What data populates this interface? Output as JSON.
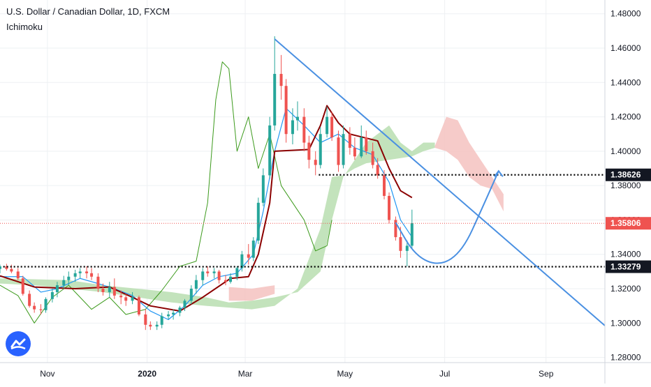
{
  "header": {
    "title": "U.S. Dollar / Canadian Dollar, 1D, FXCM",
    "indicator": "Ichimoku"
  },
  "colors": {
    "background": "#ffffff",
    "grid": "#eef0f3",
    "candle_up": "#26a69a",
    "candle_down": "#ef5350",
    "tenkan": "#2196f3",
    "kijun": "#8b0000",
    "chikou": "#3c9a1c",
    "cloud_bull": "#b8deb0",
    "cloud_bear": "#f5c2c0",
    "annotation": "#4a90e2",
    "price_line": "#ef5350",
    "price_label_bg": "#ef5350",
    "level_label_bg": "#131722"
  },
  "chart_data": {
    "type": "candlestick",
    "title": "U.S. Dollar / Canadian Dollar, 1D, FXCM",
    "indicator": "Ichimoku",
    "y_axis": {
      "range": [
        1.277,
        1.488
      ],
      "ticks": [
        "1.28000",
        "1.30000",
        "1.32000",
        "1.34000",
        "1.36000",
        "1.38000",
        "1.40000",
        "1.42000",
        "1.44000",
        "1.46000",
        "1.48000"
      ]
    },
    "x_axis": {
      "range": [
        "2019-10-03",
        "2020-10-07"
      ],
      "ticks": [
        {
          "label": "Nov",
          "date": "2019-11-01",
          "bold": false
        },
        {
          "label": "2020",
          "date": "2020-01-01",
          "bold": true
        },
        {
          "label": "Mar",
          "date": "2020-03-01",
          "bold": false
        },
        {
          "label": "May",
          "date": "2020-05-01",
          "bold": false
        },
        {
          "label": "Jul",
          "date": "2020-07-01",
          "bold": false
        },
        {
          "label": "Sep",
          "date": "2020-09-01",
          "bold": false
        }
      ]
    },
    "current_price": {
      "value": 1.35806,
      "label": "1.35806"
    },
    "horizontal_levels": [
      {
        "value": 1.38626,
        "label": "1.38626",
        "from": "2020-04-15"
      },
      {
        "value": 1.33279,
        "label": "1.33279",
        "from": "2019-10-05"
      }
    ],
    "trendline": {
      "from": {
        "date": "2020-03-19",
        "value": 1.4653
      },
      "to": {
        "date": "2020-10-07",
        "value": 1.2985
      }
    },
    "projection_path": [
      {
        "date": "2020-06-01",
        "value": 1.3585
      },
      {
        "date": "2020-06-13",
        "value": 1.339
      },
      {
        "date": "2020-06-28",
        "value": 1.333
      },
      {
        "date": "2020-07-12",
        "value": 1.342
      },
      {
        "date": "2020-07-24",
        "value": 1.367
      },
      {
        "date": "2020-08-03",
        "value": 1.3885
      }
    ],
    "projection_arrow_tip": {
      "date": "2020-08-03",
      "value": 1.3885
    },
    "candles_ohlc": [
      [
        "2019-10-03",
        1.3315,
        1.334,
        1.329,
        1.333
      ],
      [
        "2019-10-07",
        1.333,
        1.3345,
        1.3305,
        1.3315
      ],
      [
        "2019-10-10",
        1.3315,
        1.334,
        1.329,
        1.33
      ],
      [
        "2019-10-14",
        1.33,
        1.332,
        1.325,
        1.326
      ],
      [
        "2019-10-17",
        1.326,
        1.3275,
        1.316,
        1.317
      ],
      [
        "2019-10-21",
        1.317,
        1.319,
        1.309,
        1.31
      ],
      [
        "2019-10-24",
        1.31,
        1.312,
        1.306,
        1.308
      ],
      [
        "2019-10-28",
        1.308,
        1.311,
        1.305,
        1.3075
      ],
      [
        "2019-10-31",
        1.3075,
        1.315,
        1.306,
        1.314
      ],
      [
        "2019-11-04",
        1.314,
        1.32,
        1.312,
        1.318
      ],
      [
        "2019-11-07",
        1.318,
        1.324,
        1.315,
        1.322
      ],
      [
        "2019-11-11",
        1.322,
        1.3275,
        1.32,
        1.325
      ],
      [
        "2019-11-14",
        1.325,
        1.33,
        1.322,
        1.327
      ],
      [
        "2019-11-18",
        1.327,
        1.331,
        1.324,
        1.329
      ],
      [
        "2019-11-21",
        1.329,
        1.332,
        1.326,
        1.33
      ],
      [
        "2019-11-25",
        1.33,
        1.333,
        1.326,
        1.329
      ],
      [
        "2019-11-28",
        1.329,
        1.332,
        1.325,
        1.327
      ],
      [
        "2019-12-02",
        1.327,
        1.329,
        1.318,
        1.32
      ],
      [
        "2019-12-05",
        1.32,
        1.323,
        1.316,
        1.318
      ],
      [
        "2019-12-09",
        1.318,
        1.324,
        1.315,
        1.321
      ],
      [
        "2019-12-12",
        1.321,
        1.326,
        1.314,
        1.316
      ],
      [
        "2019-12-16",
        1.316,
        1.319,
        1.311,
        1.315
      ],
      [
        "2019-12-19",
        1.315,
        1.317,
        1.31,
        1.313
      ],
      [
        "2019-12-23",
        1.313,
        1.318,
        1.311,
        1.315
      ],
      [
        "2019-12-27",
        1.315,
        1.316,
        1.304,
        1.305
      ],
      [
        "2019-12-31",
        1.305,
        1.308,
        1.296,
        1.299
      ],
      [
        "2020-01-03",
        1.299,
        1.301,
        1.296,
        1.298
      ],
      [
        "2020-01-07",
        1.298,
        1.301,
        1.296,
        1.299
      ],
      [
        "2020-01-10",
        1.299,
        1.306,
        1.297,
        1.304
      ],
      [
        "2020-01-14",
        1.304,
        1.307,
        1.302,
        1.305
      ],
      [
        "2020-01-17",
        1.305,
        1.308,
        1.302,
        1.306
      ],
      [
        "2020-01-21",
        1.306,
        1.31,
        1.304,
        1.309
      ],
      [
        "2020-01-24",
        1.309,
        1.314,
        1.307,
        1.313
      ],
      [
        "2020-01-28",
        1.313,
        1.322,
        1.311,
        1.32
      ],
      [
        "2020-01-31",
        1.32,
        1.328,
        1.317,
        1.325
      ],
      [
        "2020-02-04",
        1.325,
        1.332,
        1.322,
        1.33
      ],
      [
        "2020-02-07",
        1.33,
        1.333,
        1.327,
        1.329
      ],
      [
        "2020-02-11",
        1.329,
        1.332,
        1.326,
        1.33
      ],
      [
        "2020-02-14",
        1.33,
        1.331,
        1.323,
        1.325
      ],
      [
        "2020-02-18",
        1.325,
        1.328,
        1.322,
        1.324
      ],
      [
        "2020-02-21",
        1.324,
        1.329,
        1.323,
        1.327
      ],
      [
        "2020-02-25",
        1.327,
        1.333,
        1.325,
        1.332
      ],
      [
        "2020-02-28",
        1.332,
        1.342,
        1.33,
        1.34
      ],
      [
        "2020-03-03",
        1.34,
        1.346,
        1.334,
        1.338
      ],
      [
        "2020-03-06",
        1.338,
        1.35,
        1.336,
        1.348
      ],
      [
        "2020-03-09",
        1.348,
        1.373,
        1.346,
        1.37
      ],
      [
        "2020-03-12",
        1.37,
        1.39,
        1.368,
        1.386
      ],
      [
        "2020-03-16",
        1.386,
        1.42,
        1.384,
        1.415
      ],
      [
        "2020-03-19",
        1.415,
        1.4669,
        1.412,
        1.445
      ],
      [
        "2020-03-23",
        1.445,
        1.456,
        1.43,
        1.438
      ],
      [
        "2020-03-26",
        1.438,
        1.442,
        1.405,
        1.41
      ],
      [
        "2020-03-30",
        1.41,
        1.425,
        1.404,
        1.418
      ],
      [
        "2020-04-02",
        1.418,
        1.429,
        1.412,
        1.42
      ],
      [
        "2020-04-06",
        1.42,
        1.425,
        1.4,
        1.405
      ],
      [
        "2020-04-09",
        1.405,
        1.409,
        1.39,
        1.395
      ],
      [
        "2020-04-13",
        1.395,
        1.4,
        1.386,
        1.392
      ],
      [
        "2020-04-16",
        1.392,
        1.414,
        1.39,
        1.41
      ],
      [
        "2020-04-20",
        1.41,
        1.426,
        1.408,
        1.42
      ],
      [
        "2020-04-23",
        1.42,
        1.423,
        1.406,
        1.408
      ],
      [
        "2020-04-27",
        1.408,
        1.412,
        1.388,
        1.392
      ],
      [
        "2020-04-30",
        1.392,
        1.415,
        1.39,
        1.41
      ],
      [
        "2020-05-04",
        1.41,
        1.414,
        1.398,
        1.402
      ],
      [
        "2020-05-07",
        1.402,
        1.408,
        1.395,
        1.397
      ],
      [
        "2020-05-11",
        1.397,
        1.415,
        1.396,
        1.408
      ],
      [
        "2020-05-14",
        1.408,
        1.412,
        1.398,
        1.4
      ],
      [
        "2020-05-18",
        1.4,
        1.405,
        1.39,
        1.392
      ],
      [
        "2020-05-21",
        1.392,
        1.396,
        1.384,
        1.386
      ],
      [
        "2020-05-25",
        1.386,
        1.389,
        1.372,
        1.374
      ],
      [
        "2020-05-28",
        1.374,
        1.376,
        1.358,
        1.36
      ],
      [
        "2020-06-01",
        1.36,
        1.362,
        1.348,
        1.35
      ],
      [
        "2020-06-04",
        1.35,
        1.356,
        1.338,
        1.342
      ],
      [
        "2020-06-08",
        1.342,
        1.348,
        1.333,
        1.345
      ],
      [
        "2020-06-11",
        1.345,
        1.366,
        1.343,
        1.3581
      ]
    ],
    "tenkan_sen": [
      [
        "2019-10-03",
        1.327
      ],
      [
        "2019-10-17",
        1.327
      ],
      [
        "2019-10-28",
        1.318
      ],
      [
        "2019-11-07",
        1.32
      ],
      [
        "2019-11-21",
        1.326
      ],
      [
        "2019-12-02",
        1.323
      ],
      [
        "2019-12-12",
        1.32
      ],
      [
        "2019-12-23",
        1.316
      ],
      [
        "2020-01-03",
        1.307
      ],
      [
        "2020-01-14",
        1.302
      ],
      [
        "2020-01-24",
        1.31
      ],
      [
        "2020-02-04",
        1.322
      ],
      [
        "2020-02-14",
        1.327
      ],
      [
        "2020-02-25",
        1.329
      ],
      [
        "2020-03-06",
        1.34
      ],
      [
        "2020-03-12",
        1.365
      ],
      [
        "2020-03-19",
        1.4
      ],
      [
        "2020-03-26",
        1.425
      ],
      [
        "2020-04-06",
        1.415
      ],
      [
        "2020-04-16",
        1.405
      ],
      [
        "2020-04-27",
        1.41
      ],
      [
        "2020-05-07",
        1.402
      ],
      [
        "2020-05-18",
        1.398
      ],
      [
        "2020-05-28",
        1.382
      ],
      [
        "2020-06-04",
        1.36
      ],
      [
        "2020-06-11",
        1.35
      ]
    ],
    "kijun_sen": [
      [
        "2019-10-03",
        1.3275
      ],
      [
        "2019-10-24",
        1.321
      ],
      [
        "2019-11-18",
        1.32
      ],
      [
        "2019-12-09",
        1.321
      ],
      [
        "2019-12-23",
        1.315
      ],
      [
        "2020-01-03",
        1.31
      ],
      [
        "2020-01-21",
        1.307
      ],
      [
        "2020-02-04",
        1.315
      ],
      [
        "2020-02-21",
        1.326
      ],
      [
        "2020-03-03",
        1.327
      ],
      [
        "2020-03-09",
        1.34
      ],
      [
        "2020-03-16",
        1.37
      ],
      [
        "2020-03-19",
        1.4
      ],
      [
        "2020-04-09",
        1.401
      ],
      [
        "2020-04-16",
        1.415
      ],
      [
        "2020-04-20",
        1.4265
      ],
      [
        "2020-04-27",
        1.4165
      ],
      [
        "2020-05-04",
        1.41
      ],
      [
        "2020-05-21",
        1.406
      ],
      [
        "2020-05-28",
        1.39
      ],
      [
        "2020-06-04",
        1.377
      ],
      [
        "2020-06-11",
        1.373
      ]
    ],
    "chikou_span": [
      [
        "2019-10-03",
        1.322
      ],
      [
        "2019-10-14",
        1.316
      ],
      [
        "2019-10-24",
        1.3
      ],
      [
        "2019-11-04",
        1.315
      ],
      [
        "2019-11-14",
        1.322
      ],
      [
        "2019-11-28",
        1.308
      ],
      [
        "2019-12-09",
        1.315
      ],
      [
        "2019-12-19",
        1.305
      ],
      [
        "2019-12-31",
        1.308
      ],
      [
        "2020-01-10",
        1.319
      ],
      [
        "2020-01-21",
        1.333
      ],
      [
        "2020-01-31",
        1.336
      ],
      [
        "2020-02-07",
        1.37
      ],
      [
        "2020-02-12",
        1.43
      ],
      [
        "2020-02-16",
        1.452
      ],
      [
        "2020-02-20",
        1.448
      ],
      [
        "2020-02-25",
        1.4
      ],
      [
        "2020-03-03",
        1.42
      ],
      [
        "2020-03-09",
        1.39
      ],
      [
        "2020-03-16",
        1.41
      ],
      [
        "2020-03-23",
        1.38
      ],
      [
        "2020-03-30",
        1.37
      ],
      [
        "2020-04-06",
        1.36
      ],
      [
        "2020-04-13",
        1.342
      ],
      [
        "2020-04-20",
        1.345
      ],
      [
        "2020-04-23",
        1.36
      ]
    ],
    "senkou_span_a": [
      [
        "2019-10-03",
        1.326
      ],
      [
        "2019-10-24",
        1.3255
      ],
      [
        "2019-11-14",
        1.325
      ],
      [
        "2019-12-05",
        1.322
      ],
      [
        "2019-12-26",
        1.32
      ],
      [
        "2020-01-16",
        1.318
      ],
      [
        "2020-02-06",
        1.315
      ],
      [
        "2020-02-20",
        1.312
      ],
      [
        "2020-03-05",
        1.313
      ],
      [
        "2020-03-19",
        1.315
      ],
      [
        "2020-04-02",
        1.318
      ],
      [
        "2020-04-16",
        1.33
      ],
      [
        "2020-04-23",
        1.36
      ],
      [
        "2020-04-30",
        1.385
      ],
      [
        "2020-05-07",
        1.395
      ],
      [
        "2020-05-14",
        1.405
      ],
      [
        "2020-05-28",
        1.415
      ],
      [
        "2020-06-04",
        1.405
      ],
      [
        "2020-06-11",
        1.4
      ],
      [
        "2020-06-18",
        1.405
      ],
      [
        "2020-06-25",
        1.405
      ]
    ],
    "senkou_span_b": [
      [
        "2019-10-03",
        1.323
      ],
      [
        "2019-10-24",
        1.322
      ],
      [
        "2019-11-14",
        1.32
      ],
      [
        "2019-12-05",
        1.318
      ],
      [
        "2019-12-26",
        1.315
      ],
      [
        "2020-01-16",
        1.312
      ],
      [
        "2020-02-06",
        1.31
      ],
      [
        "2020-02-20",
        1.309
      ],
      [
        "2020-03-05",
        1.308
      ],
      [
        "2020-03-19",
        1.31
      ],
      [
        "2020-04-02",
        1.32
      ],
      [
        "2020-04-16",
        1.355
      ],
      [
        "2020-04-23",
        1.385
      ],
      [
        "2020-04-30",
        1.386
      ],
      [
        "2020-05-07",
        1.39
      ],
      [
        "2020-05-14",
        1.393
      ],
      [
        "2020-05-28",
        1.395
      ],
      [
        "2020-06-04",
        1.396
      ],
      [
        "2020-06-11",
        1.397
      ],
      [
        "2020-06-18",
        1.4
      ],
      [
        "2020-06-25",
        1.402
      ]
    ],
    "cloud_bear_segment": {
      "top": [
        [
          "2020-06-25",
          1.403
        ],
        [
          "2020-07-02",
          1.42
        ],
        [
          "2020-07-09",
          1.418
        ],
        [
          "2020-07-16",
          1.405
        ],
        [
          "2020-07-23",
          1.395
        ],
        [
          "2020-07-30",
          1.385
        ],
        [
          "2020-08-06",
          1.375
        ]
      ],
      "bottom": [
        [
          "2020-06-25",
          1.402
        ],
        [
          "2020-07-02",
          1.4
        ],
        [
          "2020-07-09",
          1.395
        ],
        [
          "2020-07-16",
          1.385
        ],
        [
          "2020-07-23",
          1.38
        ],
        [
          "2020-07-30",
          1.378
        ],
        [
          "2020-08-06",
          1.365
        ]
      ]
    }
  }
}
